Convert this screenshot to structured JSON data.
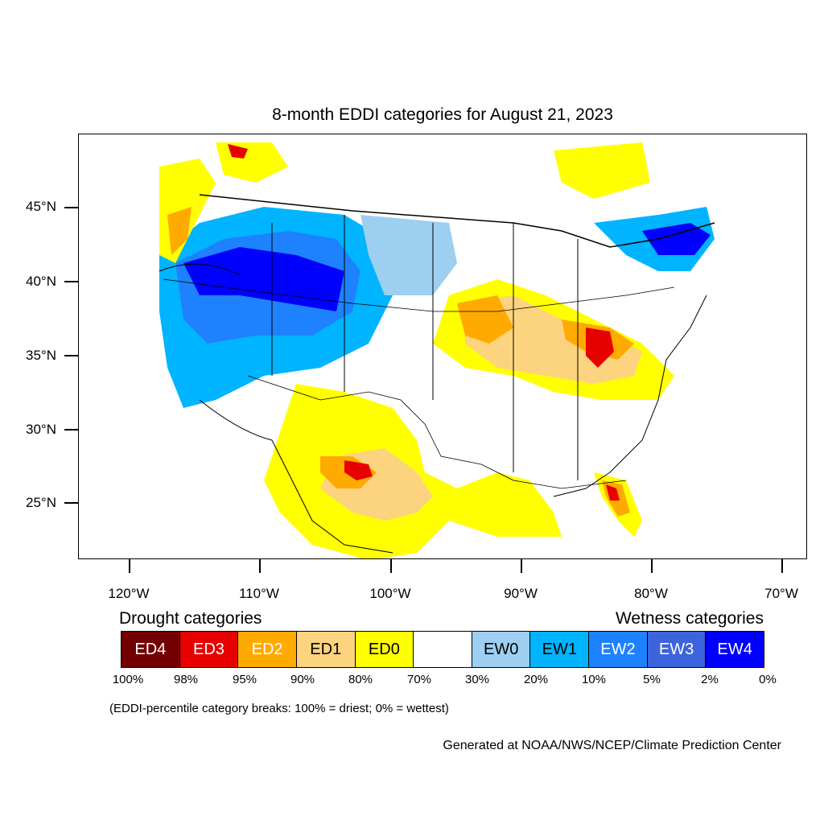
{
  "title": "8-month EDDI categories for August 21, 2023",
  "map": {
    "lat_labels": [
      "45°N",
      "40°N",
      "35°N",
      "30°N",
      "25°N"
    ],
    "lon_labels": [
      "120°W",
      "110°W",
      "100°W",
      "90°W",
      "80°W",
      "70°W"
    ]
  },
  "legend": {
    "drought_heading": "Drought categories",
    "wetness_heading": "Wetness categories",
    "categories": [
      {
        "label": "ED4",
        "color": "#730000",
        "text_color": "#ffffff"
      },
      {
        "label": "ED3",
        "color": "#e60000",
        "text_color": "#ffffff"
      },
      {
        "label": "ED2",
        "color": "#ffaa00",
        "text_color": "#ffffff"
      },
      {
        "label": "ED1",
        "color": "#fcd37f",
        "text_color": "#000000"
      },
      {
        "label": "ED0",
        "color": "#ffff00",
        "text_color": "#000000"
      },
      {
        "label": "",
        "color": "#ffffff",
        "text_color": "#000000"
      },
      {
        "label": "EW0",
        "color": "#9dcff0",
        "text_color": "#000000"
      },
      {
        "label": "EW1",
        "color": "#00b4ff",
        "text_color": "#000000"
      },
      {
        "label": "EW2",
        "color": "#1e82ff",
        "text_color": "#ffffff"
      },
      {
        "label": "EW3",
        "color": "#3c64dc",
        "text_color": "#ffffff"
      },
      {
        "label": "EW4",
        "color": "#0000ff",
        "text_color": "#ffffff"
      }
    ],
    "percent_labels": [
      "100%",
      "98%",
      "95%",
      "90%",
      "80%",
      "70%",
      "30%",
      "20%",
      "10%",
      "5%",
      "2%",
      "0%"
    ]
  },
  "note": "(EDDI-percentile category breaks: 100% = driest; 0% = wettest)",
  "credit": "Generated at NOAA/NWS/NCEP/Climate Prediction Center"
}
